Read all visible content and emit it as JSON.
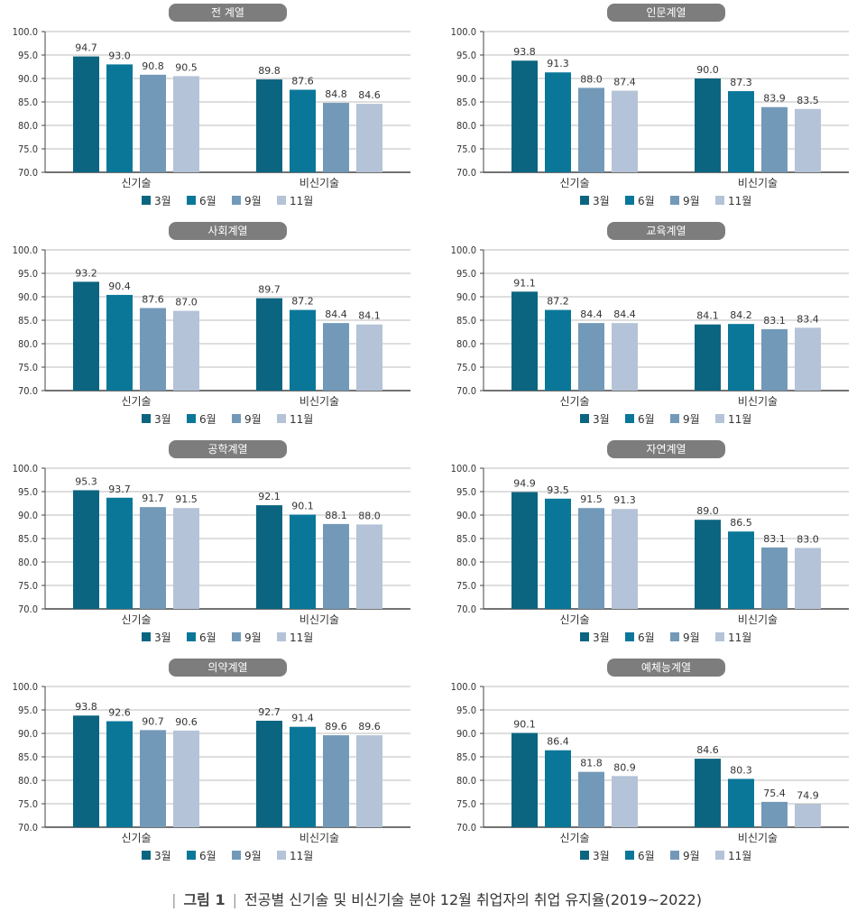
{
  "caption": {
    "figure_label": "그림 1",
    "text": "전공별 신기술 및 비신기술 분야 12월 취업자의 취업 유지율(2019~2022)"
  },
  "chart_data": [
    {
      "type": "bar",
      "title": "전 계열",
      "categories": [
        "신기술",
        "비신기술"
      ],
      "series": [
        {
          "name": "3월",
          "values": [
            94.7,
            89.8
          ]
        },
        {
          "name": "6월",
          "values": [
            93.0,
            87.6
          ]
        },
        {
          "name": "9월",
          "values": [
            90.8,
            84.8
          ]
        },
        {
          "name": "11월",
          "values": [
            90.5,
            84.6
          ]
        }
      ],
      "ylim": [
        70,
        100
      ],
      "yticks": [
        "100.0",
        "95.0",
        "90.0",
        "85.0",
        "80.0",
        "75.0",
        "70.0"
      ],
      "grid": true,
      "legend": "bottom"
    },
    {
      "type": "bar",
      "title": "인문계열",
      "categories": [
        "신기술",
        "비신기술"
      ],
      "series": [
        {
          "name": "3월",
          "values": [
            93.8,
            90.0
          ]
        },
        {
          "name": "6월",
          "values": [
            91.3,
            87.3
          ]
        },
        {
          "name": "9월",
          "values": [
            88.0,
            83.9
          ]
        },
        {
          "name": "11월",
          "values": [
            87.4,
            83.5
          ]
        }
      ],
      "ylim": [
        70,
        100
      ],
      "yticks": [
        "100.0",
        "95.0",
        "90.0",
        "85.0",
        "80.0",
        "75.0",
        "70.0"
      ],
      "grid": true,
      "legend": "bottom"
    },
    {
      "type": "bar",
      "title": "사회계열",
      "categories": [
        "신기술",
        "비신기술"
      ],
      "series": [
        {
          "name": "3월",
          "values": [
            93.2,
            89.7
          ]
        },
        {
          "name": "6월",
          "values": [
            90.4,
            87.2
          ]
        },
        {
          "name": "9월",
          "values": [
            87.6,
            84.4
          ]
        },
        {
          "name": "11월",
          "values": [
            87.0,
            84.1
          ]
        }
      ],
      "ylim": [
        70,
        100
      ],
      "yticks": [
        "100.0",
        "95.0",
        "90.0",
        "85.0",
        "80.0",
        "75.0",
        "70.0"
      ],
      "grid": true,
      "legend": "bottom"
    },
    {
      "type": "bar",
      "title": "교육계열",
      "categories": [
        "신기술",
        "비신기술"
      ],
      "series": [
        {
          "name": "3월",
          "values": [
            91.1,
            84.1
          ]
        },
        {
          "name": "6월",
          "values": [
            87.2,
            84.2
          ]
        },
        {
          "name": "9월",
          "values": [
            84.4,
            83.1
          ]
        },
        {
          "name": "11월",
          "values": [
            84.4,
            83.4
          ]
        }
      ],
      "ylim": [
        70,
        100
      ],
      "yticks": [
        "100.0",
        "95.0",
        "90.0",
        "85.0",
        "80.0",
        "75.0",
        "70.0"
      ],
      "grid": true,
      "legend": "bottom"
    },
    {
      "type": "bar",
      "title": "공학계열",
      "categories": [
        "신기술",
        "비신기술"
      ],
      "series": [
        {
          "name": "3월",
          "values": [
            95.3,
            92.1
          ]
        },
        {
          "name": "6월",
          "values": [
            93.7,
            90.1
          ]
        },
        {
          "name": "9월",
          "values": [
            91.7,
            88.1
          ]
        },
        {
          "name": "11월",
          "values": [
            91.5,
            88.0
          ]
        }
      ],
      "ylim": [
        70,
        100
      ],
      "yticks": [
        "100.0",
        "95.0",
        "90.0",
        "85.0",
        "80.0",
        "75.0",
        "70.0"
      ],
      "grid": true,
      "legend": "bottom"
    },
    {
      "type": "bar",
      "title": "자연계열",
      "categories": [
        "신기술",
        "비신기술"
      ],
      "series": [
        {
          "name": "3월",
          "values": [
            94.9,
            89.0
          ]
        },
        {
          "name": "6월",
          "values": [
            93.5,
            86.5
          ]
        },
        {
          "name": "9월",
          "values": [
            91.5,
            83.1
          ]
        },
        {
          "name": "11월",
          "values": [
            91.3,
            83.0
          ]
        }
      ],
      "ylim": [
        70,
        100
      ],
      "yticks": [
        "100.0",
        "95.0",
        "90.0",
        "85.0",
        "80.0",
        "75.0",
        "70.0"
      ],
      "grid": true,
      "legend": "bottom"
    },
    {
      "type": "bar",
      "title": "의약계열",
      "categories": [
        "신기술",
        "비신기술"
      ],
      "series": [
        {
          "name": "3월",
          "values": [
            93.8,
            92.7
          ]
        },
        {
          "name": "6월",
          "values": [
            92.6,
            91.4
          ]
        },
        {
          "name": "9월",
          "values": [
            90.7,
            89.6
          ]
        },
        {
          "name": "11월",
          "values": [
            90.6,
            89.6
          ]
        }
      ],
      "ylim": [
        70,
        100
      ],
      "yticks": [
        "100.0",
        "95.0",
        "90.0",
        "85.0",
        "80.0",
        "75.0",
        "70.0"
      ],
      "grid": true,
      "legend": "bottom"
    },
    {
      "type": "bar",
      "title": "예체능계열",
      "categories": [
        "신기술",
        "비신기술"
      ],
      "series": [
        {
          "name": "3월",
          "values": [
            90.1,
            84.6
          ]
        },
        {
          "name": "6월",
          "values": [
            86.4,
            80.3
          ]
        },
        {
          "name": "9월",
          "values": [
            81.8,
            75.4
          ]
        },
        {
          "name": "11월",
          "values": [
            80.9,
            74.9
          ]
        }
      ],
      "ylim": [
        70,
        100
      ],
      "yticks": [
        "100.0",
        "95.0",
        "90.0",
        "85.0",
        "80.0",
        "75.0",
        "70.0"
      ],
      "grid": true,
      "legend": "bottom"
    }
  ],
  "colors": {
    "3월": "#0c6580",
    "6월": "#0a7799",
    "9월": "#7399b8",
    "11월": "#b4c3d7",
    "title_pill": "#7d7d7d"
  }
}
